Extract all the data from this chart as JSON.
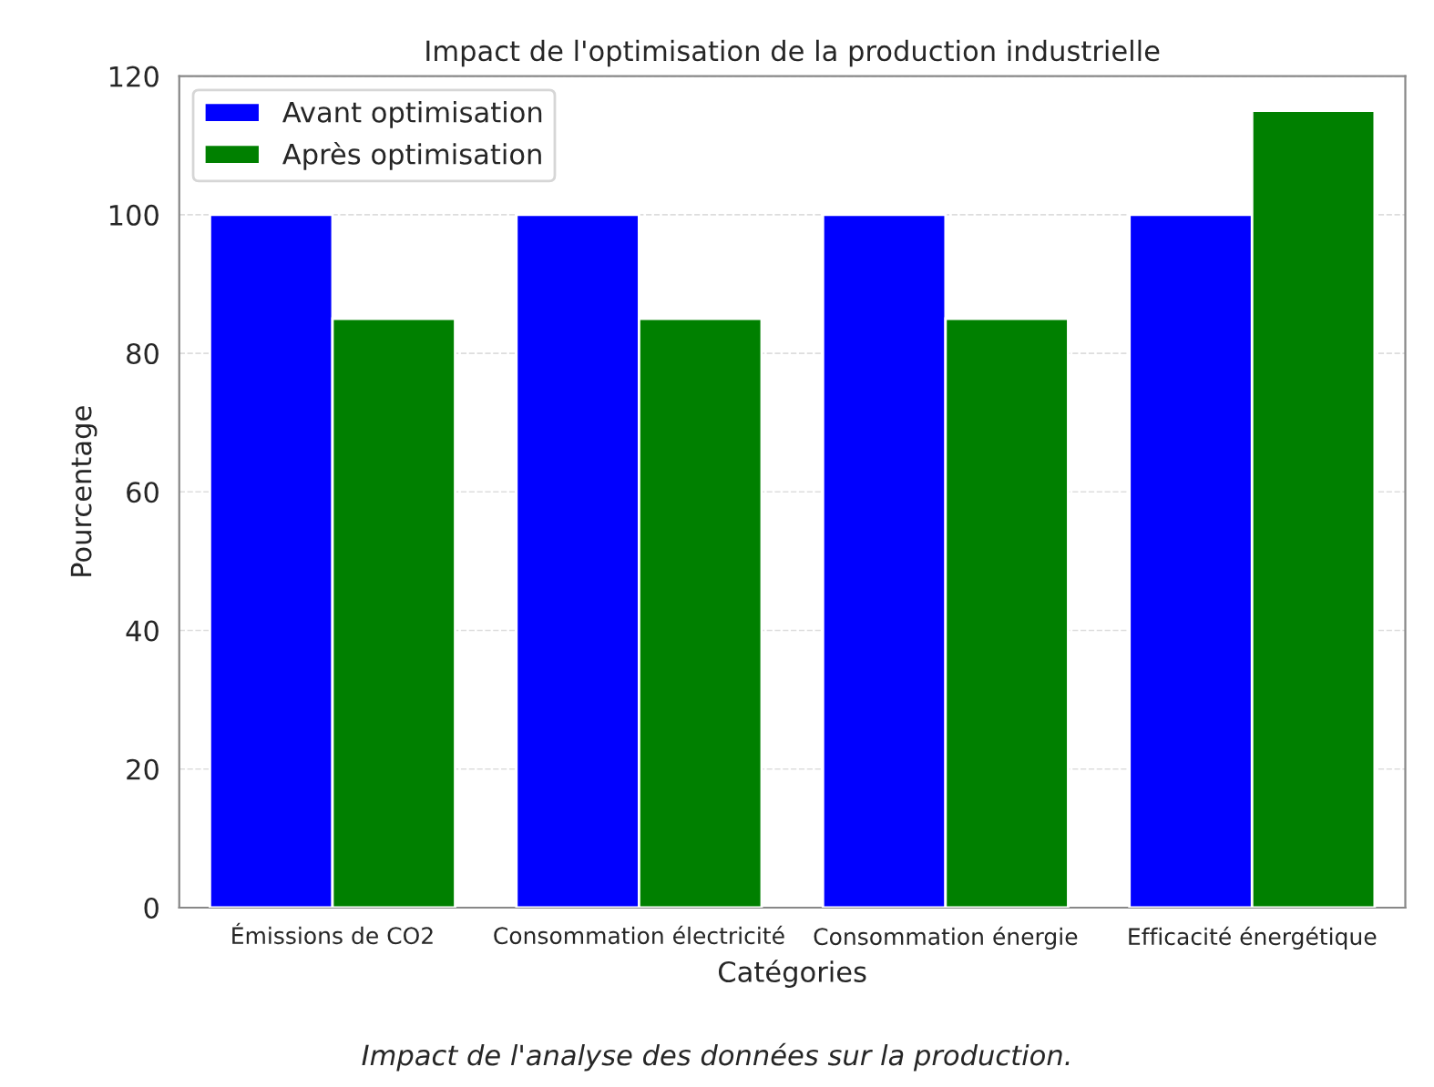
{
  "chart_data": {
    "type": "bar",
    "title": "Impact de l'optimisation de la production industrielle",
    "xlabel": "Catégories",
    "ylabel": "Pourcentage",
    "categories": [
      "Émissions de CO2",
      "Consommation électricité",
      "Consommation énergie",
      "Efficacité énergétique"
    ],
    "series": [
      {
        "name": "Avant optimisation",
        "color": "#0000ff",
        "values": [
          100,
          100,
          100,
          100
        ]
      },
      {
        "name": "Après optimisation",
        "color": "#008000",
        "values": [
          85,
          85,
          85,
          115
        ]
      }
    ],
    "ylim": [
      0,
      120
    ],
    "yticks": [
      0,
      20,
      40,
      60,
      80,
      100,
      120
    ],
    "grid": "y",
    "legend": "top left",
    "annotations": [
      "Impact de l'analyse des données sur la production."
    ]
  }
}
